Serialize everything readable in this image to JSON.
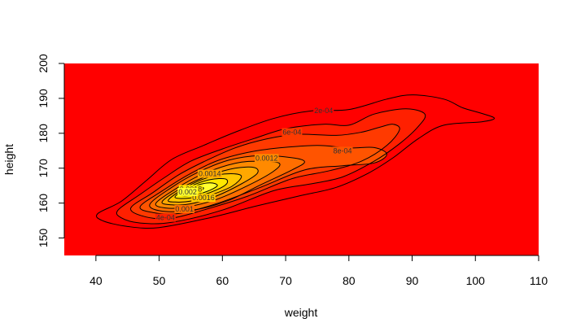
{
  "chart_data": {
    "type": "heatmap",
    "subtype": "filled-contour",
    "title": "",
    "xlabel": "weight",
    "ylabel": "height",
    "xlim": [
      35,
      110
    ],
    "ylim": [
      145,
      200
    ],
    "x_ticks": [
      "40",
      "50",
      "60",
      "70",
      "80",
      "90",
      "100",
      "110"
    ],
    "y_ticks": [
      "150",
      "160",
      "170",
      "180",
      "190",
      "200"
    ],
    "grid": false,
    "legend": "none",
    "background_color": "#ff0000",
    "levels": [
      {
        "level": 0.0002,
        "label": "2e-04",
        "color": "#ff0000",
        "points": [
          [
            40.3,
            157.0
          ],
          [
            44,
            160.5
          ],
          [
            48,
            166.5
          ],
          [
            52,
            172.5
          ],
          [
            57,
            176.5
          ],
          [
            62,
            180.3
          ],
          [
            68,
            184.2
          ],
          [
            74,
            186.4
          ],
          [
            80,
            186.8
          ],
          [
            86,
            189.8
          ],
          [
            90,
            191.0
          ],
          [
            95,
            189.8
          ],
          [
            98,
            187.3
          ],
          [
            101,
            185.7
          ],
          [
            103,
            184.3
          ],
          [
            101,
            183.3
          ],
          [
            95,
            182.3
          ],
          [
            91,
            178.5
          ],
          [
            87,
            173.0
          ],
          [
            83,
            168.5
          ],
          [
            78,
            164.5
          ],
          [
            72,
            162.0
          ],
          [
            65,
            159.0
          ],
          [
            58,
            155.8
          ],
          [
            50,
            153.0
          ],
          [
            45,
            153.3
          ],
          [
            41,
            155.0
          ]
        ],
        "label_at": [
          76,
          186.5
        ]
      },
      {
        "level": 0.0004,
        "label": "4e-04",
        "color": "#ff2000",
        "points": [
          [
            43.5,
            158.0
          ],
          [
            47,
            162.5
          ],
          [
            51,
            167.5
          ],
          [
            55,
            172.0
          ],
          [
            60,
            175.5
          ],
          [
            65,
            178.5
          ],
          [
            70,
            181.3
          ],
          [
            76,
            182.6
          ],
          [
            80,
            182.3
          ],
          [
            84,
            185.5
          ],
          [
            89,
            187.0
          ],
          [
            92,
            185.5
          ],
          [
            91,
            182.0
          ],
          [
            88,
            177.0
          ],
          [
            84,
            172.0
          ],
          [
            79,
            167.5
          ],
          [
            74,
            165.5
          ],
          [
            68,
            163.5
          ],
          [
            60,
            158.0
          ],
          [
            52,
            154.5
          ],
          [
            47,
            154.3
          ],
          [
            44,
            155.8
          ]
        ],
        "label_at": [
          51,
          155.8
        ]
      },
      {
        "level": 0.0006,
        "label": "6e-04",
        "color": "#ff3a00",
        "points": [
          [
            45.5,
            158.5
          ],
          [
            49,
            163.0
          ],
          [
            53,
            168.0
          ],
          [
            57,
            171.8
          ],
          [
            62,
            175.8
          ],
          [
            67,
            178.4
          ],
          [
            72,
            179.7
          ],
          [
            78,
            179.4
          ],
          [
            82,
            180.3
          ],
          [
            85,
            181.8
          ],
          [
            87,
            182.6
          ],
          [
            88,
            181.0
          ],
          [
            86,
            176.5
          ],
          [
            82,
            172.0
          ],
          [
            77,
            169.3
          ],
          [
            71,
            167.0
          ],
          [
            64,
            162.0
          ],
          [
            57,
            158.0
          ],
          [
            52,
            155.7
          ],
          [
            48,
            156.0
          ]
        ],
        "label_at": [
          71,
          180.3
        ]
      },
      {
        "level": 0.0008,
        "label": "8e-04",
        "color": "#ff5400",
        "points": [
          [
            47,
            159.0
          ],
          [
            50.5,
            163.5
          ],
          [
            54.5,
            168.0
          ],
          [
            59,
            172.0
          ],
          [
            64,
            174.5
          ],
          [
            69,
            175.8
          ],
          [
            75,
            176.5
          ],
          [
            80,
            175.8
          ],
          [
            84,
            175.9
          ],
          [
            86,
            174.0
          ],
          [
            84,
            171.5
          ],
          [
            79,
            170.7
          ],
          [
            73,
            169.5
          ],
          [
            66,
            164.5
          ],
          [
            59,
            159.8
          ],
          [
            53,
            157.0
          ],
          [
            49,
            157.3
          ]
        ],
        "label_at": [
          79,
          175.0
        ]
      },
      {
        "level": 0.001,
        "label": "0.001",
        "color": "#ff6e00",
        "points": [
          [
            48.5,
            159.5
          ],
          [
            52,
            164.5
          ],
          [
            56,
            168.7
          ],
          [
            61,
            172.3
          ],
          [
            66,
            173.6
          ],
          [
            71,
            173.0
          ],
          [
            73,
            171.8
          ],
          [
            71,
            169.5
          ],
          [
            66,
            165.2
          ],
          [
            61,
            160.8
          ],
          [
            56,
            158.2
          ],
          [
            51,
            157.6
          ]
        ],
        "label_at": [
          54,
          158.3
        ]
      },
      {
        "level": 0.0012,
        "label": "0.0012",
        "color": "#ff8a00",
        "points": [
          [
            49.5,
            160.0
          ],
          [
            53,
            164.5
          ],
          [
            57,
            168.4
          ],
          [
            62,
            171.4
          ],
          [
            66,
            172.0
          ],
          [
            69,
            171.4
          ],
          [
            68,
            169.0
          ],
          [
            64,
            165.0
          ],
          [
            59,
            161.0
          ],
          [
            54,
            158.8
          ],
          [
            51,
            158.6
          ]
        ],
        "label_at": [
          67,
          172.9
        ]
      },
      {
        "level": 0.0014,
        "label": "0.0014",
        "color": "#ffa800",
        "points": [
          [
            50.5,
            160.5
          ],
          [
            54,
            164.8
          ],
          [
            58,
            168.0
          ],
          [
            62,
            170.0
          ],
          [
            65,
            170.2
          ],
          [
            65.5,
            168.5
          ],
          [
            63,
            165.5
          ],
          [
            59,
            162.0
          ],
          [
            55,
            159.8
          ],
          [
            52,
            159.5
          ]
        ],
        "label_at": [
          58,
          168.4
        ]
      },
      {
        "level": 0.0016,
        "label": "0.0016",
        "color": "#ffc800",
        "points": [
          [
            51.5,
            161.0
          ],
          [
            54.5,
            164.8
          ],
          [
            58,
            167.5
          ],
          [
            61,
            168.4
          ],
          [
            63,
            167.7
          ],
          [
            61.5,
            164.8
          ],
          [
            58,
            162.2
          ],
          [
            55,
            160.6
          ],
          [
            52.5,
            160.3
          ]
        ],
        "label_at": [
          57,
          161.5
        ]
      },
      {
        "level": 0.0018,
        "label": "0.0018",
        "color": "#ffe800",
        "points": [
          [
            52.5,
            161.7
          ],
          [
            55,
            164.8
          ],
          [
            58,
            166.7
          ],
          [
            60.5,
            166.9
          ],
          [
            60.5,
            165.2
          ],
          [
            58,
            163.0
          ],
          [
            55,
            161.5
          ]
        ],
        "label_at": [
          55,
          164.0
        ]
      },
      {
        "level": 0.002,
        "label": "0.002",
        "color": "#ffff30",
        "points": [
          [
            53.3,
            162.4
          ],
          [
            55.5,
            164.8
          ],
          [
            58,
            165.8
          ],
          [
            59.2,
            165.0
          ],
          [
            57.5,
            163.3
          ],
          [
            55,
            162.2
          ]
        ],
        "label_at": [
          54.5,
          163.2
        ]
      },
      {
        "level": 0.0022,
        "label": "",
        "color": "#ffffb0",
        "points": [
          [
            54.2,
            163.0
          ],
          [
            55.6,
            164.3
          ],
          [
            57,
            164.4
          ],
          [
            56.5,
            163.4
          ],
          [
            55.2,
            162.8
          ]
        ],
        "label_at": null
      }
    ],
    "contour_color": "#000000"
  }
}
